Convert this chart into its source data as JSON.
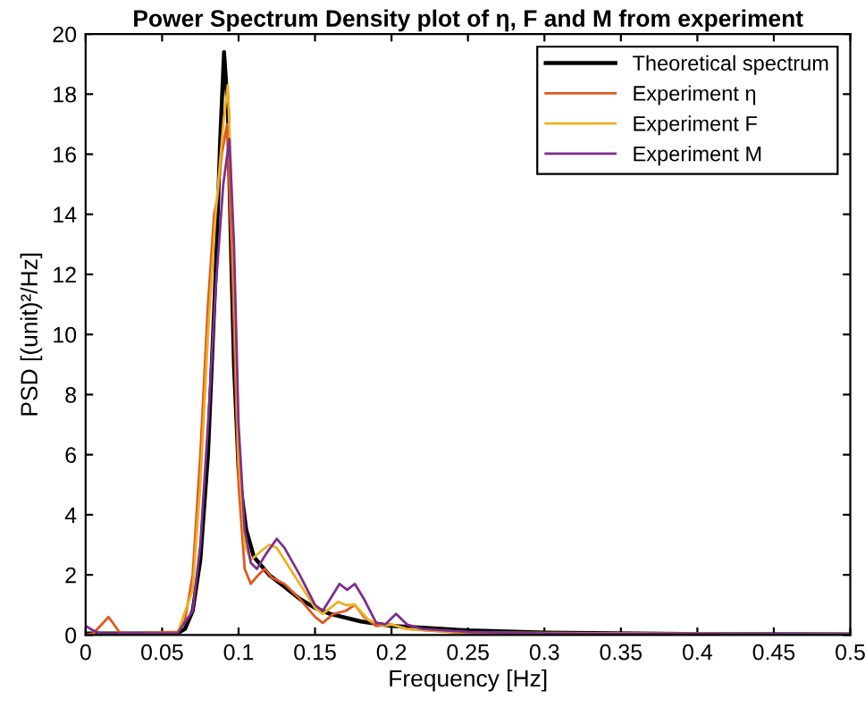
{
  "chart_data": {
    "type": "line",
    "title": "Power Spectrum Density plot of η, F and M from experiment",
    "xlabel": "Frequency [Hz]",
    "ylabel": "PSD [(unit)²/Hz]",
    "xlim": [
      0,
      0.5
    ],
    "ylim": [
      0,
      20
    ],
    "xticks": [
      0,
      0.05,
      0.1,
      0.15,
      0.2,
      0.25,
      0.3,
      0.35,
      0.4,
      0.45,
      0.5
    ],
    "yticks": [
      0,
      2,
      4,
      6,
      8,
      10,
      12,
      14,
      16,
      18,
      20
    ],
    "grid": false,
    "legend": "top right",
    "marker": "none",
    "line_style": "solid",
    "series": [
      {
        "name": "Theoretical spectrum",
        "color": "#000000",
        "x": [
          0,
          0.03,
          0.06,
          0.065,
          0.07,
          0.075,
          0.08,
          0.085,
          0.088,
          0.0905,
          0.093,
          0.095,
          0.097,
          0.1,
          0.105,
          0.11,
          0.12,
          0.13,
          0.14,
          0.15,
          0.16,
          0.18,
          0.2,
          0.25,
          0.3,
          0.4,
          0.5
        ],
        "values": [
          0.05,
          0.05,
          0.05,
          0.2,
          0.8,
          2.5,
          6,
          12,
          16.5,
          19.4,
          17.5,
          13,
          9,
          5.5,
          3.5,
          2.6,
          2.0,
          1.6,
          1.2,
          0.9,
          0.7,
          0.45,
          0.3,
          0.15,
          0.08,
          0.03,
          0.02
        ]
      },
      {
        "name": "Experiment η",
        "color": "#e0581f",
        "x": [
          0,
          0.005,
          0.015,
          0.022,
          0.03,
          0.06,
          0.065,
          0.07,
          0.075,
          0.08,
          0.084,
          0.086,
          0.089,
          0.0925,
          0.096,
          0.1,
          0.104,
          0.108,
          0.113,
          0.117,
          0.122,
          0.13,
          0.14,
          0.15,
          0.155,
          0.162,
          0.17,
          0.176,
          0.182,
          0.19,
          0.2,
          0.21,
          0.25,
          0.3,
          0.5
        ],
        "values": [
          0,
          0.05,
          0.6,
          0.1,
          0.05,
          0.1,
          0.5,
          2,
          6,
          11,
          14,
          14.5,
          16,
          17.0,
          12,
          5,
          2.2,
          1.7,
          2.0,
          2.2,
          1.9,
          1.7,
          1.2,
          0.6,
          0.4,
          0.7,
          0.8,
          1.0,
          0.6,
          0.3,
          0.35,
          0.2,
          0.05,
          0.05,
          0.02
        ]
      },
      {
        "name": "Experiment F",
        "color": "#edb120",
        "x": [
          0,
          0.06,
          0.07,
          0.075,
          0.08,
          0.085,
          0.09,
          0.093,
          0.096,
          0.1,
          0.104,
          0.108,
          0.115,
          0.12,
          0.125,
          0.13,
          0.14,
          0.15,
          0.155,
          0.165,
          0.17,
          0.176,
          0.185,
          0.195,
          0.2,
          0.21,
          0.25,
          0.5
        ],
        "values": [
          0,
          0.05,
          1.5,
          5,
          10,
          14,
          17,
          18.3,
          14,
          6,
          3.0,
          2.5,
          2.8,
          3.0,
          2.9,
          2.5,
          1.7,
          0.9,
          0.7,
          1.1,
          1.0,
          1.0,
          0.5,
          0.3,
          0.35,
          0.2,
          0.08,
          0.02
        ]
      },
      {
        "name": "Experiment M",
        "color": "#7e2f8e",
        "x": [
          0,
          0.005,
          0.01,
          0.06,
          0.07,
          0.075,
          0.08,
          0.085,
          0.09,
          0.094,
          0.097,
          0.1,
          0.104,
          0.108,
          0.112,
          0.118,
          0.125,
          0.13,
          0.14,
          0.15,
          0.155,
          0.16,
          0.166,
          0.171,
          0.176,
          0.182,
          0.19,
          0.196,
          0.203,
          0.21,
          0.22,
          0.25,
          0.3,
          0.5
        ],
        "values": [
          0.3,
          0.15,
          0.05,
          0.05,
          0.8,
          3,
          7,
          11.5,
          15,
          16.5,
          13,
          7,
          3.5,
          2.4,
          2.2,
          2.7,
          3.2,
          2.9,
          2.0,
          1.0,
          0.8,
          1.2,
          1.7,
          1.5,
          1.7,
          1.2,
          0.4,
          0.35,
          0.7,
          0.35,
          0.2,
          0.1,
          0.05,
          0.02
        ]
      }
    ]
  }
}
